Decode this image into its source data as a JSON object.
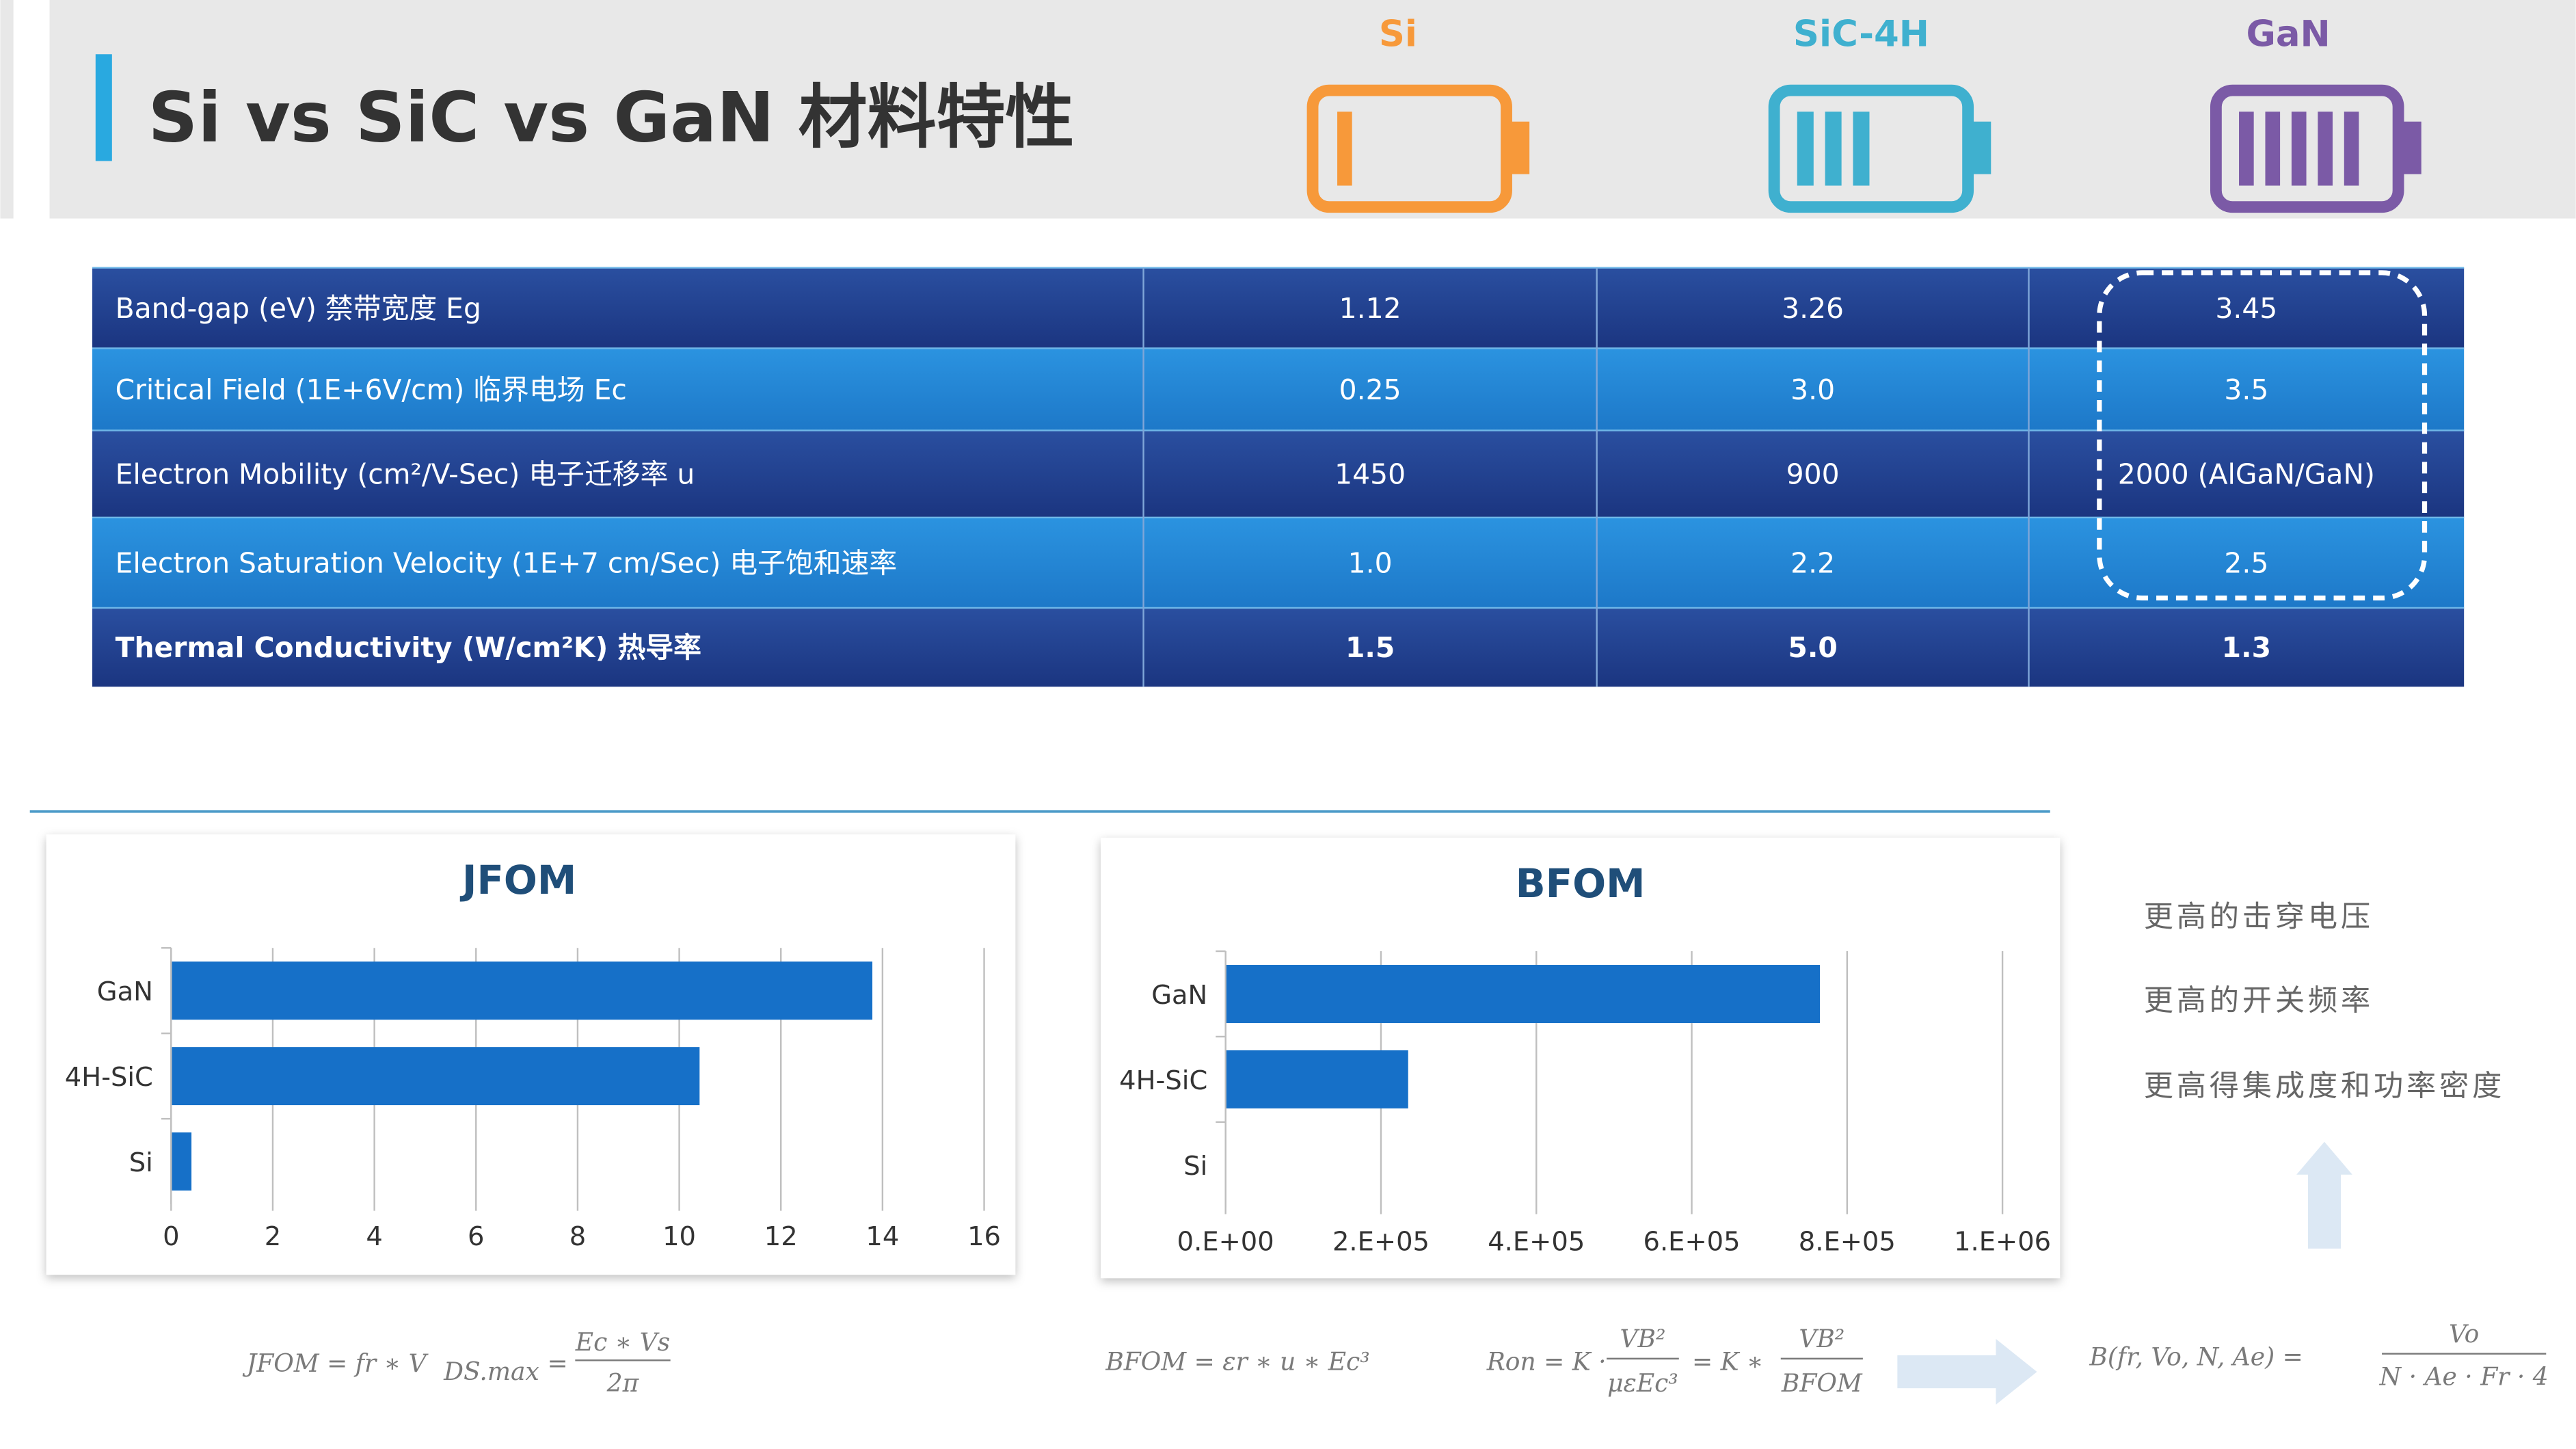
{
  "header": {
    "title": "Si vs SiC vs GaN 材料特性"
  },
  "table": {
    "columns": [
      "Si",
      "SiC-4H",
      "GaN"
    ],
    "rows": [
      [
        "Band-gap (eV)  禁带宽度 Eg",
        "1.12",
        "3.26",
        "3.45"
      ],
      [
        "Critical Field (1E+6V/cm)  临界电场 Ec",
        "0.25",
        "3.0",
        "3.5"
      ],
      [
        "Electron Mobility (cm²/V-Sec) 电子迁移率 u",
        "1450",
        "900",
        "2000 (AlGaN/GaN)"
      ],
      [
        "Electron Saturation Velocity (1E+7 cm/Sec) 电子饱和速率",
        "1.0",
        "2.2",
        "2.5"
      ],
      [
        "Thermal Conductivity (W/cm²K) 热导率",
        "1.5",
        "5.0",
        "1.3"
      ]
    ]
  },
  "chart_data": [
    {
      "type": "bar",
      "orientation": "horizontal",
      "title": "JFOM",
      "categories": [
        "GaN",
        "4H-SiC",
        "Si"
      ],
      "values": [
        13.8,
        10.4,
        0.4
      ],
      "color": "#1670c8",
      "xlim": [
        0,
        16
      ],
      "xticks": [
        0,
        2,
        4,
        6,
        8,
        10,
        12,
        14,
        16
      ],
      "grid": true
    },
    {
      "type": "bar",
      "orientation": "horizontal",
      "title": "BFOM",
      "categories": [
        "GaN",
        "4H-SiC",
        "Si"
      ],
      "values": [
        765000,
        235000,
        0
      ],
      "color": "#1670c8",
      "xlim": [
        0,
        1000000
      ],
      "xticks": [
        {
          "value": 0,
          "label": "0.E+00"
        },
        {
          "value": 200000,
          "label": "2.E+05"
        },
        {
          "value": 400000,
          "label": "4.E+05"
        },
        {
          "value": 600000,
          "label": "6.E+05"
        },
        {
          "value": 800000,
          "label": "8.E+05"
        },
        {
          "value": 1000000,
          "label": "1.E+06"
        }
      ],
      "grid": true
    }
  ],
  "notes": [
    "更高的击穿电压",
    "更高的开关频率",
    "更高得集成度和功率密度"
  ],
  "formulas": {
    "jfom": {
      "left": "JFOM = fr ∗ V",
      "sub": "DS.max",
      "eq": "=",
      "num": "Ec ∗ Vs",
      "den": "2π"
    },
    "bfom": {
      "left": "BFOM = εr ∗ u ∗ Ec³"
    },
    "ron": {
      "left": "Ron = K ·",
      "num1": "VB²",
      "den1": "μεEc³",
      "mid": "= K ∗",
      "num2": "VB²",
      "den2": "BFOM"
    },
    "b": {
      "left": "B(fr, Vo, N, Ae) =",
      "num": "Vo",
      "den": "N · Ae · Fr · 4"
    }
  }
}
